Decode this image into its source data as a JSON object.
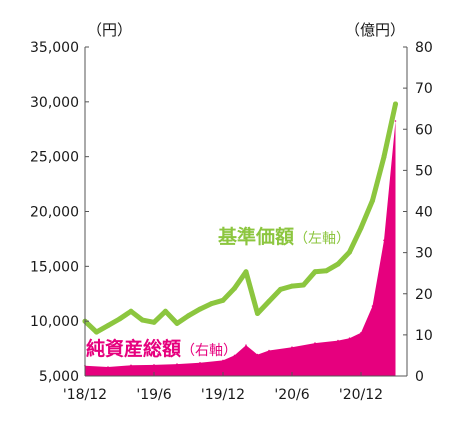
{
  "chart_data": {
    "type": "line",
    "left_unit": "（円）",
    "right_unit": "（億円）",
    "y_left": {
      "min": 5000,
      "max": 35000,
      "ticks": [
        5000,
        10000,
        15000,
        20000,
        25000,
        30000,
        35000
      ],
      "tick_labels": [
        "5,000",
        "10,000",
        "15,000",
        "20,000",
        "25,000",
        "30,000",
        "35,000"
      ]
    },
    "y_right": {
      "min": 0,
      "max": 80,
      "ticks": [
        0,
        10,
        20,
        30,
        40,
        50,
        60,
        70,
        80
      ],
      "tick_labels": [
        "0",
        "10",
        "20",
        "30",
        "40",
        "50",
        "60",
        "70",
        "80"
      ]
    },
    "x_range": [
      "2018-12",
      "2021-04"
    ],
    "x_ticks": [
      {
        "month": "2018-12",
        "label": "'18/12"
      },
      {
        "month": "2019-06",
        "label": "'19/6"
      },
      {
        "month": "2019-12",
        "label": "'19/12"
      },
      {
        "month": "2020-06",
        "label": "'20/6"
      },
      {
        "month": "2020-12",
        "label": "'20/12"
      }
    ],
    "series": [
      {
        "name": "基準価額",
        "name_suffix": "（左軸）",
        "kind": "line",
        "axis": "left",
        "color": "#8cc63f",
        "points": [
          [
            "2018-12",
            10000
          ],
          [
            "2019-01",
            9000
          ],
          [
            "2019-02",
            9600
          ],
          [
            "2019-03",
            10200
          ],
          [
            "2019-04",
            10900
          ],
          [
            "2019-05",
            10100
          ],
          [
            "2019-06",
            9900
          ],
          [
            "2019-07",
            10900
          ],
          [
            "2019-08",
            9800
          ],
          [
            "2019-09",
            10500
          ],
          [
            "2019-10",
            11100
          ],
          [
            "2019-11",
            11600
          ],
          [
            "2019-12",
            11900
          ],
          [
            "2020-01",
            13000
          ],
          [
            "2020-02",
            14500
          ],
          [
            "2020-03",
            10700
          ],
          [
            "2020-04",
            11800
          ],
          [
            "2020-05",
            12900
          ],
          [
            "2020-06",
            13200
          ],
          [
            "2020-07",
            13300
          ],
          [
            "2020-08",
            14500
          ],
          [
            "2020-09",
            14600
          ],
          [
            "2020-10",
            15200
          ],
          [
            "2020-11",
            16300
          ],
          [
            "2020-12",
            18500
          ],
          [
            "2021-01",
            21000
          ],
          [
            "2021-02",
            25000
          ],
          [
            "2021-03",
            29800
          ]
        ]
      },
      {
        "name": "純資産総額",
        "name_suffix": "（右軸）",
        "kind": "area",
        "axis": "right",
        "color": "#e6007e",
        "points": [
          [
            "2018-12",
            2.5
          ],
          [
            "2019-02",
            2.2
          ],
          [
            "2019-04",
            2.6
          ],
          [
            "2019-06",
            2.7
          ],
          [
            "2019-08",
            2.9
          ],
          [
            "2019-10",
            3.2
          ],
          [
            "2019-12",
            3.8
          ],
          [
            "2020-01",
            5.0
          ],
          [
            "2020-02",
            7.5
          ],
          [
            "2020-03",
            5.2
          ],
          [
            "2020-04",
            6.2
          ],
          [
            "2020-06",
            7.0
          ],
          [
            "2020-08",
            8.0
          ],
          [
            "2020-10",
            8.6
          ],
          [
            "2020-11",
            9.2
          ],
          [
            "2020-12",
            10.5
          ],
          [
            "2021-01",
            17.0
          ],
          [
            "2021-02",
            33.0
          ],
          [
            "2021-03",
            62.0
          ]
        ]
      }
    ]
  }
}
